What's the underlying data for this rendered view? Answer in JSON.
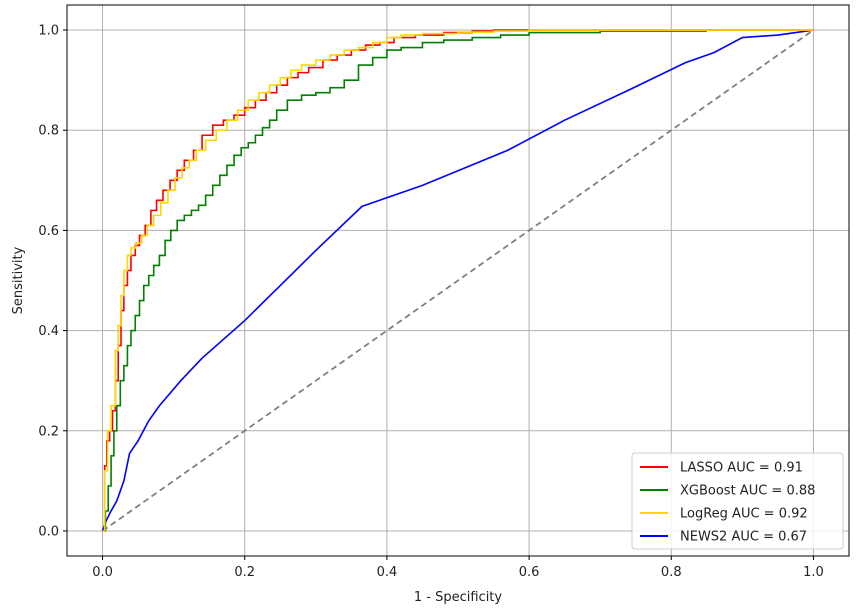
{
  "chart_data": {
    "type": "line",
    "title": "",
    "xlabel": "1 - Specificity",
    "ylabel": "Sensitivity",
    "xlim": [
      -0.05,
      1.05
    ],
    "ylim": [
      -0.05,
      1.05
    ],
    "xticks": [
      0.0,
      0.2,
      0.4,
      0.6,
      0.8,
      1.0
    ],
    "yticks": [
      0.0,
      0.2,
      0.4,
      0.6,
      0.8,
      1.0
    ],
    "xtick_labels": [
      "0.0",
      "0.2",
      "0.4",
      "0.6",
      "0.8",
      "1.0"
    ],
    "ytick_labels": [
      "0.0",
      "0.2",
      "0.4",
      "0.6",
      "0.8",
      "1.0"
    ],
    "grid": true,
    "legend_position": "bottom-right",
    "series": [
      {
        "name": "LASSO AUC = 0.91",
        "color": "#ff0000",
        "step": true,
        "x": [
          0.0,
          0.003,
          0.006,
          0.01,
          0.014,
          0.018,
          0.022,
          0.026,
          0.03,
          0.035,
          0.04,
          0.046,
          0.052,
          0.06,
          0.068,
          0.076,
          0.085,
          0.095,
          0.105,
          0.115,
          0.128,
          0.14,
          0.155,
          0.17,
          0.185,
          0.2,
          0.215,
          0.23,
          0.245,
          0.26,
          0.275,
          0.29,
          0.31,
          0.33,
          0.35,
          0.37,
          0.39,
          0.41,
          0.44,
          0.48,
          0.52,
          0.55,
          0.6,
          0.65,
          0.74,
          0.8,
          0.85,
          0.9,
          1.0
        ],
        "y": [
          0.0,
          0.13,
          0.18,
          0.2,
          0.24,
          0.3,
          0.37,
          0.44,
          0.49,
          0.52,
          0.55,
          0.57,
          0.59,
          0.61,
          0.64,
          0.66,
          0.68,
          0.7,
          0.72,
          0.74,
          0.76,
          0.79,
          0.81,
          0.82,
          0.83,
          0.845,
          0.86,
          0.875,
          0.89,
          0.905,
          0.915,
          0.925,
          0.94,
          0.95,
          0.96,
          0.97,
          0.975,
          0.985,
          0.99,
          0.995,
          0.998,
          1.0,
          1.0,
          1.0,
          1.0,
          1.0,
          1.0,
          1.0,
          1.0
        ]
      },
      {
        "name": "XGBoost AUC = 0.88",
        "color": "#008000",
        "step": true,
        "x": [
          0.0,
          0.004,
          0.008,
          0.012,
          0.016,
          0.02,
          0.025,
          0.03,
          0.035,
          0.04,
          0.046,
          0.052,
          0.058,
          0.065,
          0.072,
          0.08,
          0.088,
          0.096,
          0.105,
          0.115,
          0.125,
          0.135,
          0.145,
          0.155,
          0.165,
          0.175,
          0.185,
          0.195,
          0.205,
          0.215,
          0.225,
          0.235,
          0.245,
          0.26,
          0.28,
          0.3,
          0.32,
          0.34,
          0.36,
          0.38,
          0.4,
          0.42,
          0.45,
          0.48,
          0.52,
          0.56,
          0.6,
          0.7,
          0.85
        ],
        "y": [
          0.0,
          0.04,
          0.09,
          0.15,
          0.2,
          0.25,
          0.3,
          0.33,
          0.37,
          0.4,
          0.43,
          0.46,
          0.49,
          0.51,
          0.53,
          0.55,
          0.58,
          0.6,
          0.62,
          0.63,
          0.64,
          0.65,
          0.67,
          0.69,
          0.71,
          0.73,
          0.75,
          0.765,
          0.775,
          0.79,
          0.805,
          0.82,
          0.84,
          0.86,
          0.87,
          0.875,
          0.885,
          0.9,
          0.93,
          0.945,
          0.96,
          0.965,
          0.975,
          0.98,
          0.985,
          0.99,
          0.995,
          0.998,
          0.998
        ]
      },
      {
        "name": "LogReg AUC = 0.92",
        "color": "#ffd700",
        "step": true,
        "x": [
          0.0,
          0.003,
          0.007,
          0.012,
          0.018,
          0.022,
          0.026,
          0.03,
          0.035,
          0.04,
          0.047,
          0.055,
          0.063,
          0.072,
          0.082,
          0.092,
          0.102,
          0.112,
          0.122,
          0.132,
          0.145,
          0.16,
          0.175,
          0.19,
          0.205,
          0.22,
          0.235,
          0.25,
          0.265,
          0.28,
          0.3,
          0.32,
          0.34,
          0.36,
          0.38,
          0.4,
          0.42,
          0.45,
          0.5,
          0.55,
          0.6,
          0.7,
          0.8,
          1.0
        ],
        "y": [
          0.0,
          0.12,
          0.2,
          0.25,
          0.36,
          0.41,
          0.47,
          0.52,
          0.55,
          0.565,
          0.575,
          0.59,
          0.61,
          0.63,
          0.655,
          0.68,
          0.705,
          0.725,
          0.74,
          0.76,
          0.78,
          0.8,
          0.82,
          0.84,
          0.86,
          0.875,
          0.89,
          0.905,
          0.92,
          0.93,
          0.94,
          0.95,
          0.96,
          0.965,
          0.975,
          0.985,
          0.99,
          0.993,
          0.996,
          0.998,
          1.0,
          1.0,
          1.0,
          1.0
        ]
      },
      {
        "name": "NEWS2 AUC = 0.67",
        "color": "#0000ff",
        "step": false,
        "x": [
          0.0,
          0.005,
          0.012,
          0.02,
          0.03,
          0.038,
          0.05,
          0.065,
          0.08,
          0.11,
          0.14,
          0.2,
          0.25,
          0.3,
          0.365,
          0.45,
          0.57,
          0.65,
          0.74,
          0.82,
          0.86,
          0.9,
          0.95,
          1.0
        ],
        "y": [
          0.0,
          0.02,
          0.04,
          0.06,
          0.1,
          0.155,
          0.18,
          0.22,
          0.25,
          0.3,
          0.345,
          0.42,
          0.49,
          0.56,
          0.648,
          0.69,
          0.76,
          0.82,
          0.88,
          0.935,
          0.955,
          0.985,
          0.99,
          1.0
        ]
      }
    ],
    "reference_line": {
      "color": "#808080",
      "dashed": true,
      "x": [
        0,
        1
      ],
      "y": [
        0,
        1
      ]
    }
  }
}
